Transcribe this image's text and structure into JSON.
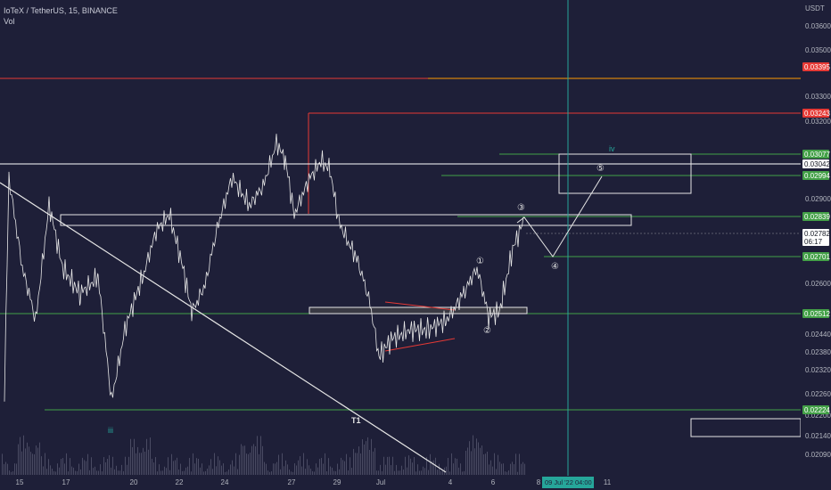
{
  "header": {
    "symbol_line": "IoTeX / TetherUS, 15, BINANCE",
    "volume_label": "Vol",
    "currency": "USDT"
  },
  "price_axis": {
    "ticks": [
      "0.03600",
      "0.03500",
      "0.03300",
      "0.03200",
      "0.02900",
      "0.02600",
      "0.02440",
      "0.02380",
      "0.02320",
      "0.02260",
      "0.02200",
      "0.02140",
      "0.02090"
    ]
  },
  "price_tags": [
    {
      "label": "0.03395",
      "color": "#e53935"
    },
    {
      "label": "0.03243",
      "color": "#e53935"
    },
    {
      "label": "0.03077",
      "color": "#43a047"
    },
    {
      "label": "0.03042",
      "color": "#ffffff"
    },
    {
      "label": "0.02994",
      "color": "#43a047"
    },
    {
      "label": "0.02839",
      "color": "#43a047"
    },
    {
      "label": "0.02782",
      "color": "#ffffff"
    },
    {
      "label": "06:17",
      "color": "#ffffff"
    },
    {
      "label": "0.02701",
      "color": "#43a047"
    },
    {
      "label": "0.02512",
      "color": "#43a047"
    },
    {
      "label": "0.02224",
      "color": "#43a047"
    }
  ],
  "time_axis": {
    "ticks": [
      "15",
      "17",
      "20",
      "22",
      "24",
      "27",
      "29",
      "Jul",
      "4",
      "6",
      "8",
      "11"
    ],
    "crosshair_label": "09 Jul '22   04:00"
  },
  "annotations": {
    "wave_labels": [
      "①",
      "②",
      "③",
      "④",
      "⑤"
    ],
    "wave_iii": "iii",
    "wave_iv": "iv",
    "trendline_label": "T1"
  },
  "colors": {
    "background": "#1e1f38",
    "support": "#43a047",
    "resistance": "#e53935",
    "crosshair": "#26a69a",
    "candles": "#e6e6e6"
  }
}
